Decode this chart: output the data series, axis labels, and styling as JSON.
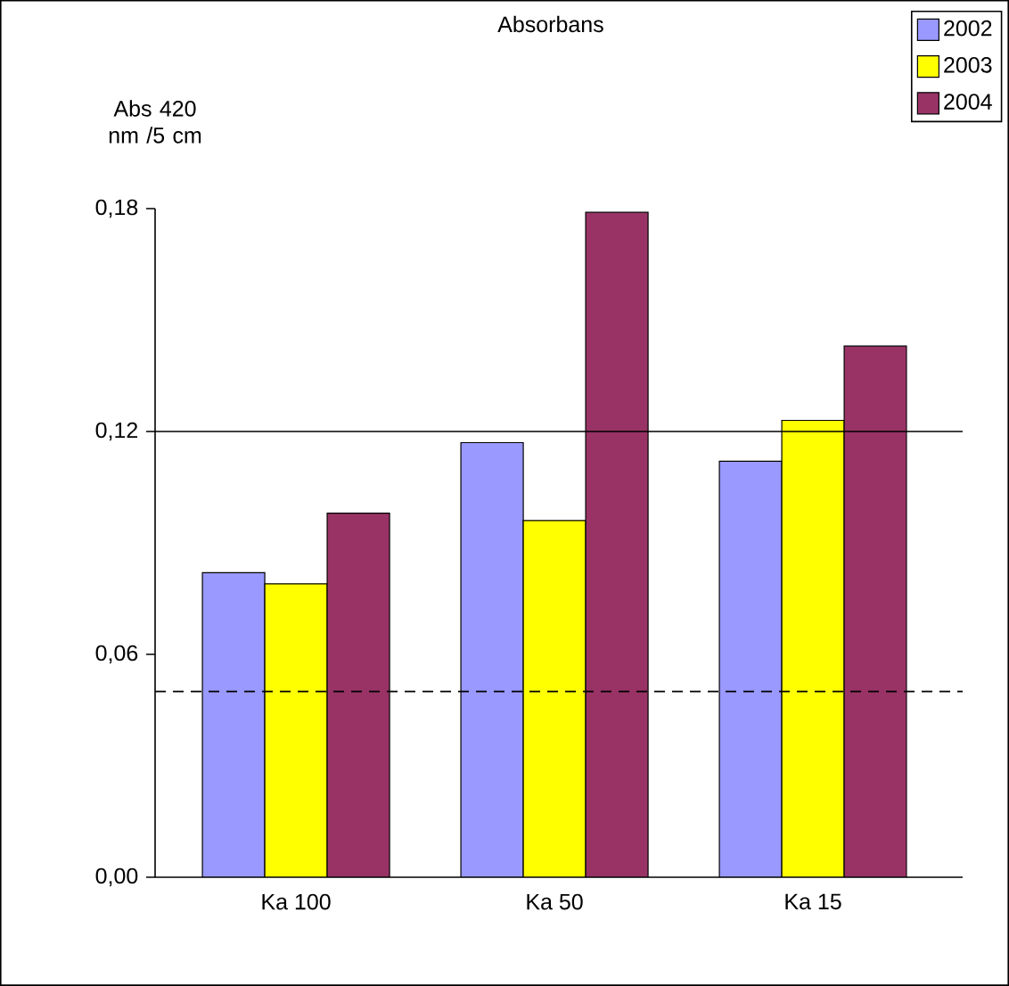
{
  "chart_data": {
    "type": "bar",
    "title": "Absorbans",
    "ylabel": "Abs 420 nm /5 cm",
    "categories": [
      "Ka 100",
      "Ka 50",
      "Ka 15"
    ],
    "series": [
      {
        "name": "2002",
        "color": "#9999ff",
        "values": [
          0.082,
          0.117,
          0.112
        ]
      },
      {
        "name": "2003",
        "color": "#ffff00",
        "values": [
          0.079,
          0.096,
          0.123
        ]
      },
      {
        "name": "2004",
        "color": "#993366",
        "values": [
          0.098,
          0.179,
          0.143
        ]
      }
    ],
    "ylim": [
      0,
      0.18
    ],
    "yticks": [
      {
        "value": 0,
        "label": "0,00"
      },
      {
        "value": 0.06,
        "label": "0,06"
      },
      {
        "value": 0.12,
        "label": "0,12"
      },
      {
        "value": 0.18,
        "label": "0,18"
      }
    ],
    "ref_lines": [
      {
        "axis": "y",
        "value": 0.12,
        "line_style": "solid"
      },
      {
        "axis": "y",
        "value": 0.05,
        "line_style": "dashed"
      }
    ],
    "grid": false,
    "legend": "top right"
  }
}
